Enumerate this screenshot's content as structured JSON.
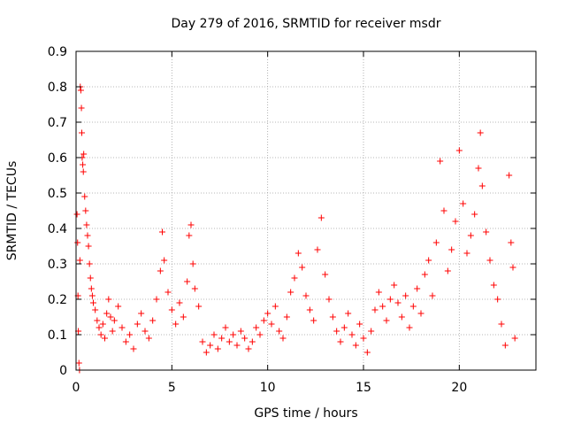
{
  "chart_data": {
    "type": "scatter",
    "title": "Day 279 of 2016, SRMTID for receiver msdr",
    "xlabel": "GPS time / hours",
    "ylabel": "SRMTID / TECUs",
    "xlim": [
      0,
      24
    ],
    "ylim": [
      0,
      0.9
    ],
    "xticks": [
      0,
      5,
      10,
      15,
      20
    ],
    "yticks": [
      0,
      0.1,
      0.2,
      0.3,
      0.4,
      0.5,
      0.6,
      0.7,
      0.8,
      0.9
    ],
    "grid": true,
    "marker": "+",
    "colors": {
      "series": "#ff0000",
      "grid": "#a0a0a0",
      "axis": "#000000"
    },
    "series": [
      {
        "name": "SRMTID",
        "points": [
          [
            0.05,
            0.44
          ],
          [
            0.08,
            0.36
          ],
          [
            0.1,
            0.21
          ],
          [
            0.12,
            0.11
          ],
          [
            0.15,
            0.02
          ],
          [
            0.18,
            0.0
          ],
          [
            0.2,
            0.31
          ],
          [
            0.22,
            0.8
          ],
          [
            0.25,
            0.79
          ],
          [
            0.28,
            0.74
          ],
          [
            0.3,
            0.67
          ],
          [
            0.32,
            0.6
          ],
          [
            0.35,
            0.58
          ],
          [
            0.38,
            0.56
          ],
          [
            0.4,
            0.61
          ],
          [
            0.45,
            0.49
          ],
          [
            0.5,
            0.45
          ],
          [
            0.55,
            0.41
          ],
          [
            0.6,
            0.38
          ],
          [
            0.65,
            0.35
          ],
          [
            0.7,
            0.3
          ],
          [
            0.75,
            0.26
          ],
          [
            0.8,
            0.23
          ],
          [
            0.85,
            0.21
          ],
          [
            0.9,
            0.19
          ],
          [
            1.0,
            0.17
          ],
          [
            1.1,
            0.14
          ],
          [
            1.2,
            0.12
          ],
          [
            1.3,
            0.1
          ],
          [
            1.4,
            0.13
          ],
          [
            1.5,
            0.09
          ],
          [
            1.6,
            0.16
          ],
          [
            1.7,
            0.2
          ],
          [
            1.8,
            0.15
          ],
          [
            1.9,
            0.11
          ],
          [
            2.0,
            0.14
          ],
          [
            2.2,
            0.18
          ],
          [
            2.4,
            0.12
          ],
          [
            2.6,
            0.08
          ],
          [
            2.8,
            0.1
          ],
          [
            3.0,
            0.06
          ],
          [
            3.2,
            0.13
          ],
          [
            3.4,
            0.16
          ],
          [
            3.6,
            0.11
          ],
          [
            3.8,
            0.09
          ],
          [
            4.0,
            0.14
          ],
          [
            4.2,
            0.2
          ],
          [
            4.4,
            0.28
          ],
          [
            4.5,
            0.39
          ],
          [
            4.6,
            0.31
          ],
          [
            4.8,
            0.22
          ],
          [
            5.0,
            0.17
          ],
          [
            5.2,
            0.13
          ],
          [
            5.4,
            0.19
          ],
          [
            5.6,
            0.15
          ],
          [
            5.8,
            0.25
          ],
          [
            5.9,
            0.38
          ],
          [
            6.0,
            0.41
          ],
          [
            6.1,
            0.3
          ],
          [
            6.2,
            0.23
          ],
          [
            6.4,
            0.18
          ],
          [
            6.6,
            0.08
          ],
          [
            6.8,
            0.05
          ],
          [
            7.0,
            0.07
          ],
          [
            7.2,
            0.1
          ],
          [
            7.4,
            0.06
          ],
          [
            7.6,
            0.09
          ],
          [
            7.8,
            0.12
          ],
          [
            8.0,
            0.08
          ],
          [
            8.2,
            0.1
          ],
          [
            8.4,
            0.07
          ],
          [
            8.6,
            0.11
          ],
          [
            8.8,
            0.09
          ],
          [
            9.0,
            0.06
          ],
          [
            9.2,
            0.08
          ],
          [
            9.4,
            0.12
          ],
          [
            9.6,
            0.1
          ],
          [
            9.8,
            0.14
          ],
          [
            10.0,
            0.16
          ],
          [
            10.2,
            0.13
          ],
          [
            10.4,
            0.18
          ],
          [
            10.6,
            0.11
          ],
          [
            10.8,
            0.09
          ],
          [
            11.0,
            0.15
          ],
          [
            11.2,
            0.22
          ],
          [
            11.4,
            0.26
          ],
          [
            11.6,
            0.33
          ],
          [
            11.8,
            0.29
          ],
          [
            12.0,
            0.21
          ],
          [
            12.2,
            0.17
          ],
          [
            12.4,
            0.14
          ],
          [
            12.6,
            0.34
          ],
          [
            12.8,
            0.43
          ],
          [
            13.0,
            0.27
          ],
          [
            13.2,
            0.2
          ],
          [
            13.4,
            0.15
          ],
          [
            13.6,
            0.11
          ],
          [
            13.8,
            0.08
          ],
          [
            14.0,
            0.12
          ],
          [
            14.2,
            0.16
          ],
          [
            14.4,
            0.1
          ],
          [
            14.6,
            0.07
          ],
          [
            14.8,
            0.13
          ],
          [
            15.0,
            0.09
          ],
          [
            15.2,
            0.05
          ],
          [
            15.4,
            0.11
          ],
          [
            15.6,
            0.17
          ],
          [
            15.8,
            0.22
          ],
          [
            16.0,
            0.18
          ],
          [
            16.2,
            0.14
          ],
          [
            16.4,
            0.2
          ],
          [
            16.6,
            0.24
          ],
          [
            16.8,
            0.19
          ],
          [
            17.0,
            0.15
          ],
          [
            17.2,
            0.21
          ],
          [
            17.4,
            0.12
          ],
          [
            17.6,
            0.18
          ],
          [
            17.8,
            0.23
          ],
          [
            18.0,
            0.16
          ],
          [
            18.2,
            0.27
          ],
          [
            18.4,
            0.31
          ],
          [
            18.6,
            0.21
          ],
          [
            18.8,
            0.36
          ],
          [
            19.0,
            0.59
          ],
          [
            19.2,
            0.45
          ],
          [
            19.4,
            0.28
          ],
          [
            19.6,
            0.34
          ],
          [
            19.8,
            0.42
          ],
          [
            20.0,
            0.62
          ],
          [
            20.2,
            0.47
          ],
          [
            20.4,
            0.33
          ],
          [
            20.6,
            0.38
          ],
          [
            20.8,
            0.44
          ],
          [
            21.0,
            0.57
          ],
          [
            21.1,
            0.67
          ],
          [
            21.2,
            0.52
          ],
          [
            21.4,
            0.39
          ],
          [
            21.6,
            0.31
          ],
          [
            21.8,
            0.24
          ],
          [
            22.0,
            0.2
          ],
          [
            22.2,
            0.13
          ],
          [
            22.4,
            0.07
          ],
          [
            22.6,
            0.55
          ],
          [
            22.7,
            0.36
          ],
          [
            22.8,
            0.29
          ],
          [
            22.9,
            0.09
          ]
        ]
      }
    ]
  }
}
